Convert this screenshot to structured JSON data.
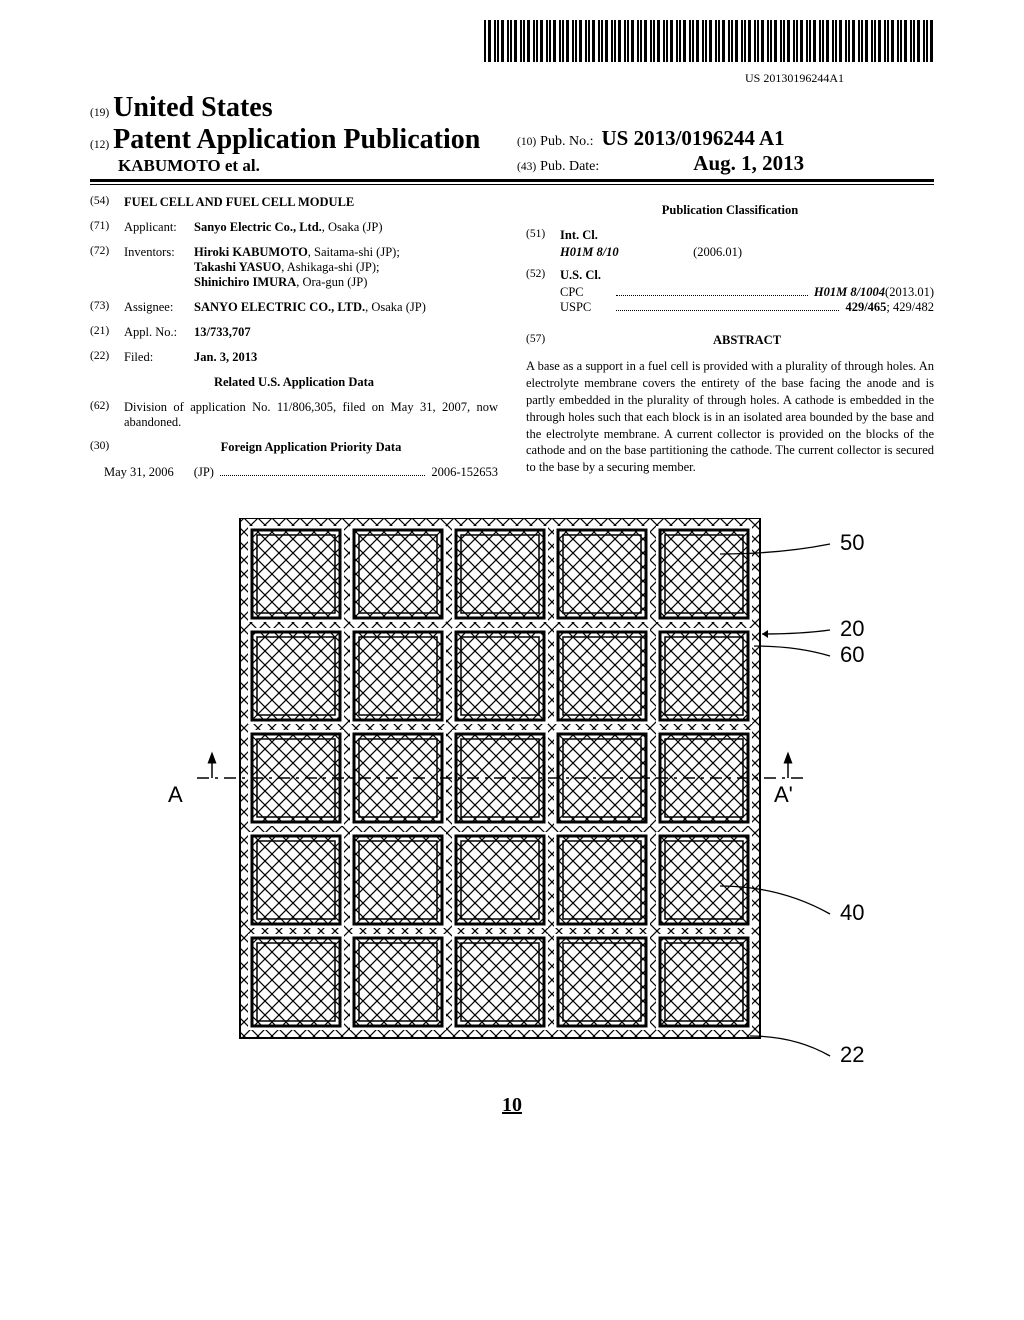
{
  "barcode_number": "US 20130196244A1",
  "header": {
    "num19": "(19)",
    "country": "United States",
    "num12": "(12)",
    "pub_type": "Patent Application Publication",
    "authors_line": "KABUMOTO et al.",
    "num10": "(10)",
    "pub_no_label": "Pub. No.:",
    "pub_no": "US 2013/0196244 A1",
    "num43": "(43)",
    "pub_date_label": "Pub. Date:",
    "pub_date": "Aug. 1, 2013"
  },
  "f54": {
    "num": "(54)",
    "title": "FUEL CELL AND FUEL CELL MODULE"
  },
  "f71": {
    "num": "(71)",
    "label": "Applicant:",
    "value_bold": "Sanyo Electric Co., Ltd.",
    "value_rest": ", Osaka (JP)"
  },
  "f72": {
    "num": "(72)",
    "label": "Inventors:",
    "v1b": "Hiroki KABUMOTO",
    "v1r": ", Saitama-shi (JP);",
    "v2b": "Takashi YASUO",
    "v2r": ", Ashikaga-shi (JP);",
    "v3b": "Shinichiro IMURA",
    "v3r": ", Ora-gun (JP)"
  },
  "f73": {
    "num": "(73)",
    "label": "Assignee:",
    "value_bold": "SANYO ELECTRIC CO., LTD.",
    "value_rest": ", Osaka (JP)"
  },
  "f21": {
    "num": "(21)",
    "label": "Appl. No.:",
    "value": "13/733,707"
  },
  "f22": {
    "num": "(22)",
    "label": "Filed:",
    "value": "Jan. 3, 2013"
  },
  "related_title": "Related U.S. Application Data",
  "f62": {
    "num": "(62)",
    "text": "Division of application No. 11/806,305, filed on May 31, 2007, now abandoned."
  },
  "f30": {
    "num": "(30)",
    "title": "Foreign Application Priority Data"
  },
  "priority": {
    "date": "May 31, 2006",
    "country": "(JP)",
    "number": "2006-152653"
  },
  "pubclass_title": "Publication Classification",
  "f51": {
    "num": "(51)",
    "label": "Int. Cl.",
    "code": "H01M 8/10",
    "date": "(2006.01)"
  },
  "f52": {
    "num": "(52)",
    "label": "U.S. Cl.",
    "cpc_label": "CPC",
    "cpc_val_bold": "H01M 8/1004",
    "cpc_val_rest": " (2013.01)",
    "uspc_label": "USPC",
    "uspc_val_bold": "429/465",
    "uspc_val_rest": "; 429/482"
  },
  "f57": {
    "num": "(57)",
    "title": "ABSTRACT"
  },
  "abstract": "A base as a support in a fuel cell is provided with a plurality of through holes. An electrolyte membrane covers the entirety of the base facing the anode and is partly embedded in the plurality of through holes. A cathode is embedded in the through holes such that each block is in an isolated area bounded by the base and the electrolyte membrane. A current collector is provided on the blocks of the cathode and on the base partitioning the cathode. The current collector is secured to the base by a securing member.",
  "figure": {
    "grid": {
      "cols": 5,
      "rows": 5,
      "cell_size": 88,
      "gap": 14,
      "outer_pad": 12
    },
    "border_color": "#000000",
    "hatch_color": "#000000",
    "bg": "#ffffff",
    "callouts": {
      "c50": "50",
      "c20": "20",
      "c60": "60",
      "c40": "40",
      "c22": "22"
    },
    "section": {
      "left": "A",
      "right": "A'"
    },
    "ref": "10"
  }
}
